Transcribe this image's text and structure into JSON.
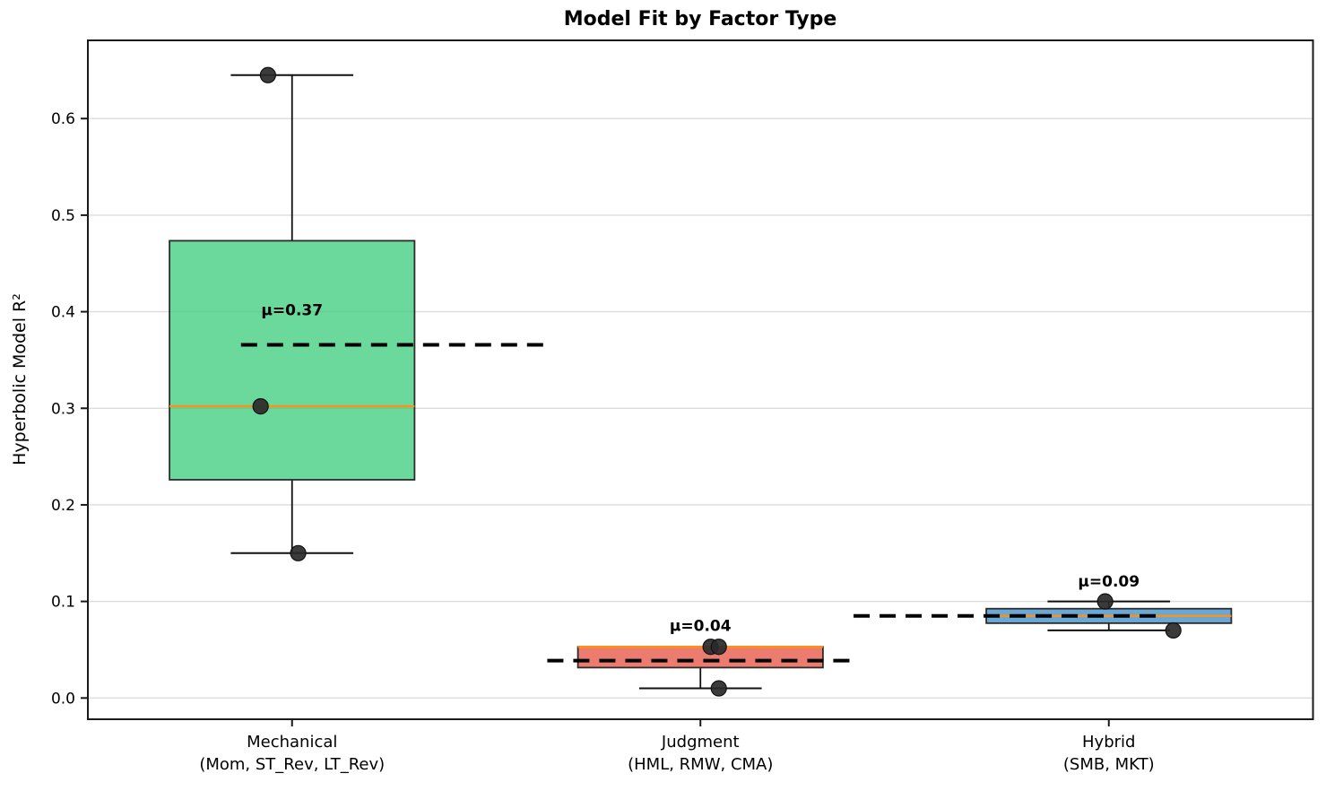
{
  "chart_data": {
    "type": "boxplot",
    "title": "Model Fit by Factor Type",
    "ylabel": "Hyperbolic Model R²",
    "xlabel": "",
    "grid": "horizontal",
    "legend": "none",
    "ylim": [
      -0.022,
      0.681
    ],
    "yticks": [
      0.0,
      0.1,
      0.2,
      0.3,
      0.4,
      0.5,
      0.6
    ],
    "ytick_labels": [
      "0.0",
      "0.1",
      "0.2",
      "0.3",
      "0.4",
      "0.5",
      "0.6"
    ],
    "box_width_units": 0.6,
    "cap_width_units": 0.3,
    "colors": {
      "grid": "#e8e8e8",
      "spine": "#1a1a1a",
      "box_edge": "#2b2b2b",
      "whisker": "#111111",
      "median": "#ff9016",
      "mean_line": "#000000",
      "point": "#2a2a2a",
      "background": "#ffffff"
    },
    "categories": [
      {
        "label": "Mechanical",
        "sublabel": "(Mom, ST_Rev, LT_Rev)",
        "fill": "#6bd99b",
        "q1": 0.226,
        "median": 0.302,
        "q3": 0.4735,
        "whisker_low": 0.15,
        "whisker_high": 0.645,
        "mean": 0.3657,
        "mean_label": "μ=0.37",
        "mean_line_span": [
          0.125,
          0.375
        ],
        "points": [
          {
            "v": 0.645,
            "xoff": -0.059
          },
          {
            "v": 0.302,
            "xoff": -0.077
          },
          {
            "v": 0.15,
            "xoff": 0.015
          }
        ]
      },
      {
        "label": "Judgment",
        "sublabel": "(HML, RMW, CMA)",
        "fill": "#ec7c70",
        "q1": 0.0315,
        "median": 0.053,
        "q3": 0.053,
        "whisker_low": 0.01,
        "whisker_high": 0.053,
        "mean": 0.0387,
        "mean_label": "μ=0.04",
        "mean_line_span": [
          0.375,
          0.625
        ],
        "points": [
          {
            "v": 0.053,
            "xoff": 0.025
          },
          {
            "v": 0.053,
            "xoff": 0.045
          },
          {
            "v": 0.01,
            "xoff": 0.045
          }
        ]
      },
      {
        "label": "Hybrid",
        "sublabel": "(SMB, MKT)",
        "fill": "#69a8d6",
        "q1": 0.0775,
        "median": 0.085,
        "q3": 0.0925,
        "whisker_low": 0.07,
        "whisker_high": 0.1,
        "mean": 0.085,
        "mean_label": "μ=0.09",
        "mean_line_span": [
          0.625,
          0.875
        ],
        "points": [
          {
            "v": 0.1,
            "xoff": -0.009
          },
          {
            "v": 0.07,
            "xoff": 0.158
          }
        ]
      }
    ]
  }
}
